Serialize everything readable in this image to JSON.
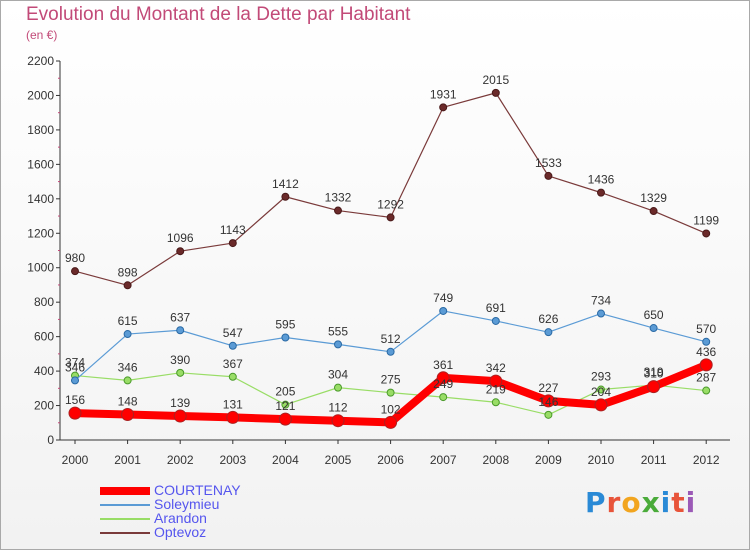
{
  "title": "Evolution du Montant de la Dette par Habitant",
  "unit": "(en €)",
  "logo": {
    "text": "Proxiti",
    "colors": [
      "#2a8ad6",
      "#e8543a",
      "#f2a51f",
      "#4aab3a",
      "#2a8ad6",
      "#e8543a",
      "#9b59b6"
    ]
  },
  "chart_data": {
    "type": "line",
    "title": "Evolution du Montant de la Dette par Habitant",
    "ylabel": "(en €)",
    "xlabel": "",
    "x": [
      "2000",
      "2001",
      "2002",
      "2003",
      "2004",
      "2005",
      "2006",
      "2007",
      "2008",
      "2009",
      "2010",
      "2011",
      "2012"
    ],
    "ylim": [
      0,
      2200
    ],
    "yticks": [
      0,
      200,
      400,
      600,
      800,
      1000,
      1200,
      1400,
      1600,
      1800,
      2000,
      2200
    ],
    "grid": false,
    "legend": "bottom-left",
    "series": [
      {
        "name": "COURTENAY",
        "color": "#ff0000",
        "values": [
          156,
          148,
          139,
          131,
          121,
          112,
          102,
          361,
          342,
          227,
          204,
          310,
          436
        ],
        "labels": [
          "156",
          "148",
          "139",
          "131",
          "121",
          "112",
          "102",
          "361",
          "342",
          "227",
          "204",
          "310",
          "436"
        ]
      },
      {
        "name": "Soleymieu",
        "color": "#5b9bd5",
        "values": [
          346,
          615,
          637,
          547,
          595,
          555,
          512,
          749,
          691,
          626,
          734,
          650,
          570
        ],
        "labels": [
          "346",
          "615",
          "637",
          "547",
          "595",
          "555",
          "512",
          "749",
          "691",
          "626",
          "734",
          "650",
          "570"
        ]
      },
      {
        "name": "Arandon",
        "color": "#99dd66",
        "values": [
          374,
          346,
          390,
          367,
          205,
          304,
          275,
          249,
          219,
          146,
          293,
          319,
          287
        ],
        "labels": [
          "374",
          "346",
          "390",
          "367",
          "205",
          "304",
          "275",
          "249",
          "219",
          "146",
          "293",
          "319",
          "287"
        ]
      },
      {
        "name": "Optevoz",
        "color": "#7a3a3a",
        "values": [
          980,
          898,
          1096,
          1143,
          1412,
          1332,
          1292,
          1931,
          2015,
          1533,
          1436,
          1329,
          1199
        ],
        "labels": [
          "980",
          "898",
          "1096",
          "1143",
          "1412",
          "1332",
          "1292",
          "1931",
          "2015",
          "1533",
          "1436",
          "1329",
          "1199"
        ]
      }
    ]
  }
}
